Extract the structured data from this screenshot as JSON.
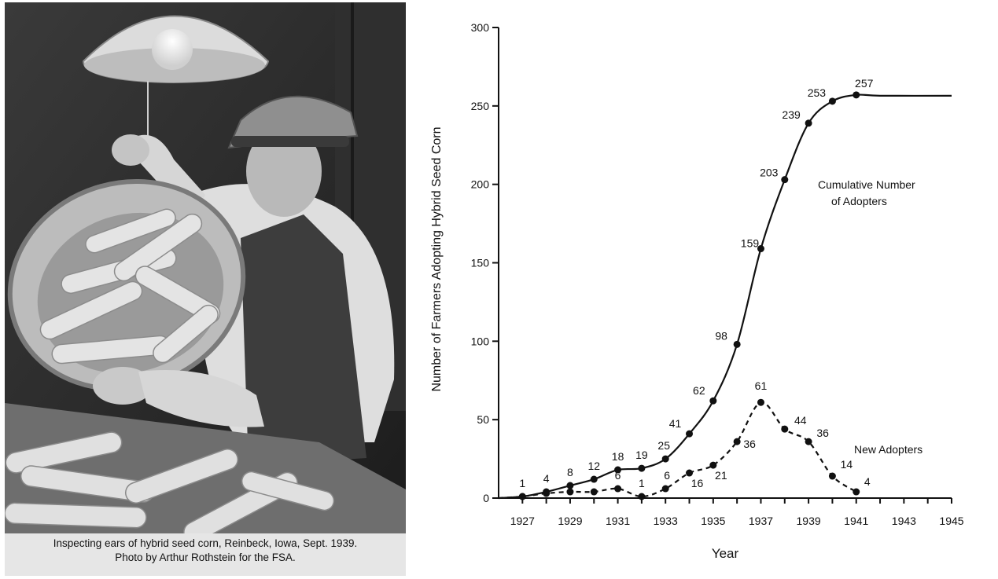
{
  "photo": {
    "caption_line1": "Inspecting ears of hybrid seed corn, Reinbeck, Iowa, Sept. 1939.",
    "caption_line2": "Photo by Arthur Rothstein for the FSA."
  },
  "chart_data": {
    "type": "line",
    "xlabel": "Year",
    "ylabel": "Number of Farmers Adopting Hybrid Seed Corn",
    "xlim": [
      1926,
      1945
    ],
    "ylim": [
      0,
      300
    ],
    "xticks": [
      1927,
      1929,
      1931,
      1933,
      1935,
      1937,
      1939,
      1941,
      1943,
      1945
    ],
    "yticks": [
      0,
      50,
      100,
      150,
      200,
      250,
      300
    ],
    "grid": false,
    "series": [
      {
        "name": "Cumulative Number of Adopters",
        "style": "solid",
        "x": [
          1927,
          1928,
          1929,
          1930,
          1931,
          1932,
          1933,
          1934,
          1935,
          1936,
          1937,
          1938,
          1939,
          1940,
          1941
        ],
        "y": [
          1,
          4,
          8,
          12,
          18,
          19,
          25,
          41,
          62,
          98,
          159,
          203,
          239,
          253,
          257
        ],
        "labels": [
          "1",
          "4",
          "8",
          "12",
          "18",
          "19",
          "25",
          "41",
          "62",
          "98",
          "159",
          "203",
          "239",
          "253",
          "257"
        ],
        "plateau_to": 1945
      },
      {
        "name": "New Adopters",
        "style": "dashed",
        "x": [
          1927,
          1928,
          1929,
          1930,
          1931,
          1932,
          1933,
          1934,
          1935,
          1936,
          1937,
          1938,
          1939,
          1940,
          1941
        ],
        "y": [
          1,
          3,
          4,
          4,
          6,
          1,
          6,
          16,
          21,
          36,
          61,
          44,
          36,
          14,
          4
        ],
        "labels": [
          "",
          "",
          "",
          "",
          "6",
          "1",
          "6",
          "16",
          "21",
          "36",
          "61",
          "44",
          "36",
          "14",
          "4"
        ]
      }
    ]
  }
}
